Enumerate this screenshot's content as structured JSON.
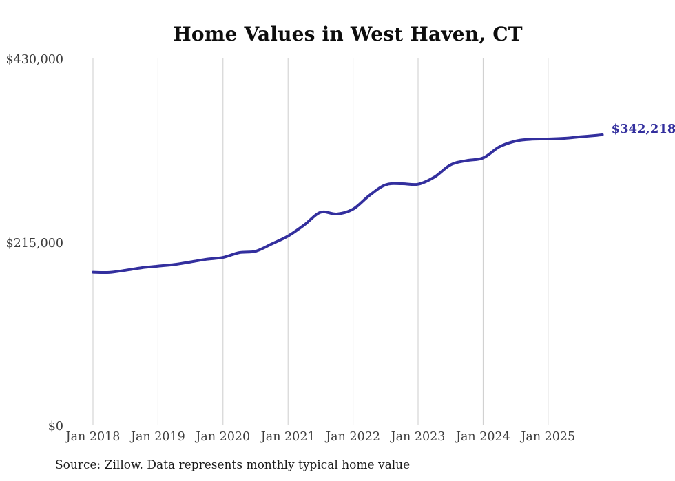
{
  "title": "Home Values in West Haven, CT",
  "source_note": "Source: Zillow. Data represents monthly typical home value",
  "end_value_label": "$342,218",
  "colors": {
    "line": "#332f9e",
    "gridline": "#cccccc",
    "title": "#0d0d0d",
    "axis_label": "#3d3d3d",
    "source": "#1a1a1a",
    "background": "#ffffff"
  },
  "chart_data": {
    "type": "line",
    "title": "Home Values in West Haven, CT",
    "xlabel": "",
    "ylabel": "",
    "ylim": [
      0,
      430000
    ],
    "grid": "vertical-only",
    "legend": "none",
    "x_ticks": [
      "Jan 2018",
      "Jan 2019",
      "Jan 2020",
      "Jan 2021",
      "Jan 2022",
      "Jan 2023",
      "Jan 2024",
      "Jan 2025"
    ],
    "y_ticks": [
      {
        "label": "$430,000",
        "value": 430000
      },
      {
        "label": "$215,000",
        "value": 215000
      },
      {
        "label": "$0",
        "value": 0
      }
    ],
    "final_value": 342218,
    "series": [
      {
        "name": "home-value",
        "points": [
          {
            "date": "2018-01",
            "value": 181000
          },
          {
            "date": "2018-04",
            "value": 180800
          },
          {
            "date": "2018-07",
            "value": 183300
          },
          {
            "date": "2018-10",
            "value": 186300
          },
          {
            "date": "2019-01",
            "value": 188200
          },
          {
            "date": "2019-04",
            "value": 190100
          },
          {
            "date": "2019-07",
            "value": 193100
          },
          {
            "date": "2019-10",
            "value": 196300
          },
          {
            "date": "2020-01",
            "value": 198400
          },
          {
            "date": "2020-04",
            "value": 204000
          },
          {
            "date": "2020-07",
            "value": 205600
          },
          {
            "date": "2020-10",
            "value": 214300
          },
          {
            "date": "2021-01",
            "value": 223500
          },
          {
            "date": "2021-04",
            "value": 236500
          },
          {
            "date": "2021-07",
            "value": 251300
          },
          {
            "date": "2021-10",
            "value": 249300
          },
          {
            "date": "2022-01",
            "value": 255000
          },
          {
            "date": "2022-04",
            "value": 271000
          },
          {
            "date": "2022-07",
            "value": 283500
          },
          {
            "date": "2022-10",
            "value": 284800
          },
          {
            "date": "2023-01",
            "value": 284200
          },
          {
            "date": "2023-04",
            "value": 292500
          },
          {
            "date": "2023-07",
            "value": 307000
          },
          {
            "date": "2023-10",
            "value": 312000
          },
          {
            "date": "2024-01",
            "value": 315000
          },
          {
            "date": "2024-04",
            "value": 328000
          },
          {
            "date": "2024-07",
            "value": 334800
          },
          {
            "date": "2024-10",
            "value": 337000
          },
          {
            "date": "2025-01",
            "value": 337200
          },
          {
            "date": "2025-04",
            "value": 338000
          },
          {
            "date": "2025-07",
            "value": 339800
          },
          {
            "date": "2025-10",
            "value": 341500
          },
          {
            "date": "2025-11",
            "value": 342218
          }
        ]
      }
    ]
  }
}
